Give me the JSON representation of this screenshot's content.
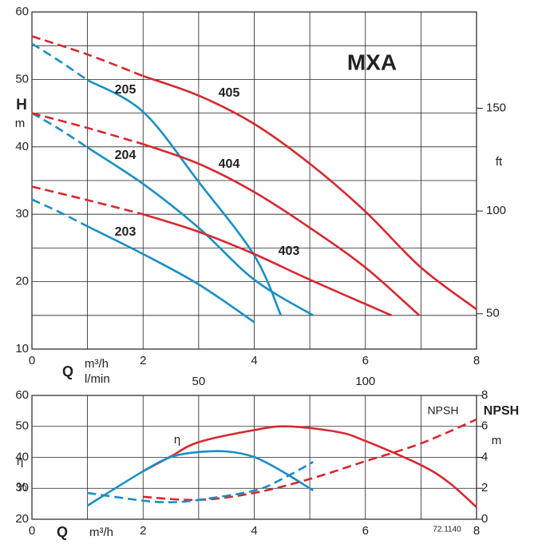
{
  "chart_data": [
    {
      "type": "line",
      "title": "MXA",
      "ylabel": "H",
      "yunit": "m",
      "y2label": "ft",
      "xlabel": "Q",
      "xunit": "m³/h",
      "x2unit": "l/min",
      "xlim": [
        0,
        8
      ],
      "xticks": [
        0,
        2,
        4,
        6,
        8
      ],
      "xgrid": [
        0,
        1,
        2,
        3,
        4,
        5,
        6,
        7,
        8
      ],
      "x2lim": [
        0,
        133.33
      ],
      "x2ticks": [
        50,
        100
      ],
      "ylim": [
        10,
        60
      ],
      "yticks": [
        10,
        20,
        30,
        40,
        50,
        60
      ],
      "ygrid": [
        10,
        15,
        20,
        25,
        30,
        35,
        40,
        45,
        50,
        55,
        60
      ],
      "y2lim": [
        32.81,
        196.85
      ],
      "y2ticks": [
        50,
        100,
        150
      ],
      "grid": true,
      "series": [
        {
          "name": "205",
          "color": "#1a8fc4",
          "dashed": {
            "x": [
              0,
              0.5,
              1
            ],
            "y": [
              55.3,
              52.7,
              49.9
            ]
          },
          "solid": {
            "x": [
              1,
              2,
              3,
              4,
              4.48
            ],
            "y": [
              49.9,
              45.2,
              34.8,
              23.9,
              15
            ]
          }
        },
        {
          "name": "204",
          "color": "#1a8fc4",
          "dashed": {
            "x": [
              0,
              0.5,
              1
            ],
            "y": [
              45,
              42.6,
              39.9
            ]
          },
          "solid": {
            "x": [
              1,
              2,
              3,
              4,
              5.06
            ],
            "y": [
              39.9,
              34.5,
              28,
              20.3,
              15
            ]
          }
        },
        {
          "name": "203",
          "color": "#1a8fc4",
          "dashed": {
            "x": [
              0,
              0.5,
              1
            ],
            "y": [
              32.2,
              30.3,
              28.2
            ]
          },
          "solid": {
            "x": [
              1,
              2,
              3,
              4
            ],
            "y": [
              28.2,
              24.1,
              19.6,
              14
            ]
          }
        },
        {
          "name": "405",
          "color": "#d7282f",
          "dashed": {
            "x": [
              0,
              1,
              2
            ],
            "y": [
              56.4,
              53.7,
              50.5
            ]
          },
          "solid": {
            "x": [
              2,
              3,
              4,
              5,
              6,
              7,
              8
            ],
            "y": [
              50.5,
              47.6,
              43.4,
              37.5,
              30.4,
              22.1,
              15.9
            ]
          }
        },
        {
          "name": "404",
          "color": "#d7282f",
          "dashed": {
            "x": [
              0,
              1,
              2
            ],
            "y": [
              45,
              42.8,
              40.4
            ]
          },
          "solid": {
            "x": [
              2,
              3,
              4,
              5,
              6,
              6.97
            ],
            "y": [
              40.4,
              37.5,
              33.3,
              28,
              22.1,
              15
            ]
          }
        },
        {
          "name": "403",
          "color": "#d7282f",
          "dashed": {
            "x": [
              0,
              1,
              2
            ],
            "y": [
              34.1,
              32.1,
              30
            ]
          },
          "solid": {
            "x": [
              2,
              3,
              4,
              5,
              6.47
            ],
            "y": [
              30,
              27.4,
              24.1,
              20.3,
              15
            ]
          }
        }
      ]
    },
    {
      "type": "line",
      "ylabel": "η",
      "yunit": "%",
      "y2label": "NPSH",
      "y2unit": "m",
      "xlabel": "Q",
      "xunit": "m³/h",
      "curve_labels": [
        "η",
        "NPSH"
      ],
      "footnote": "72.1140",
      "xlim": [
        0,
        8
      ],
      "xticks": [
        0,
        2,
        4,
        6,
        8
      ],
      "xgrid": [
        0,
        1,
        2,
        3,
        4,
        5,
        6,
        7,
        8
      ],
      "ylim": [
        20,
        60
      ],
      "yticks": [
        20,
        30,
        40,
        50,
        60
      ],
      "y2lim": [
        0,
        8
      ],
      "y2ticks": [
        0,
        2,
        4,
        6,
        8
      ],
      "grid": true,
      "series": [
        {
          "color": "#d7282f",
          "dashed": false,
          "x": [
            2,
            2.5,
            3,
            4,
            4.6,
            5.5,
            6,
            7,
            7.5,
            8
          ],
          "y": [
            35.5,
            40.3,
            44.9,
            48.8,
            50,
            48.2,
            45.3,
            37.5,
            31.9,
            23.9
          ]
        },
        {
          "color": "#1a8fc4",
          "dashed": false,
          "x": [
            1,
            2,
            2.5,
            3,
            3.5,
            4,
            4.5,
            5.06
          ],
          "y": [
            24.4,
            35.5,
            40.1,
            41.7,
            41.9,
            40.1,
            35.5,
            29.3
          ]
        },
        {
          "color": "#d7282f",
          "dashed": true,
          "axis": "y2",
          "x": [
            2,
            3,
            4,
            5,
            6,
            7,
            8
          ],
          "y": [
            1.45,
            1.25,
            1.7,
            2.6,
            3.75,
            4.9,
            6.45
          ]
        },
        {
          "color": "#1a8fc4",
          "dashed": true,
          "axis": "y2",
          "x": [
            1,
            2,
            2.5,
            3,
            4,
            4.5,
            5.06
          ],
          "y": [
            1.7,
            1.2,
            1.1,
            1.25,
            1.85,
            2.6,
            3.7
          ]
        }
      ]
    }
  ]
}
